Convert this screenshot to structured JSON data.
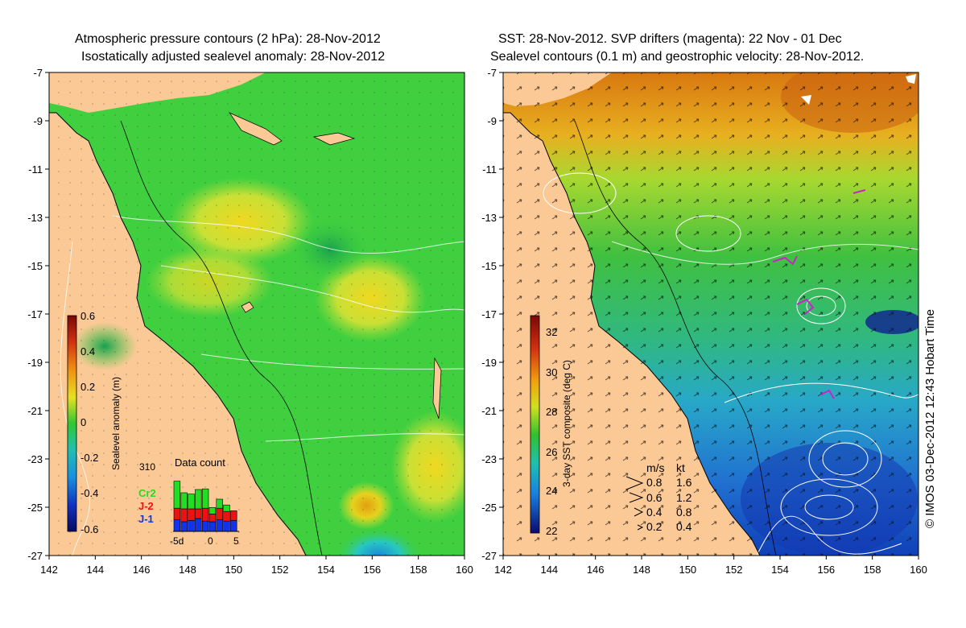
{
  "left": {
    "title1": "Atmospheric pressure contours (2 hPa): 28-Nov-2012",
    "title2": "Isostatically adjusted sealevel anomaly: 28-Nov-2012",
    "colorbar": {
      "label": "Sealevel anomaly (m)",
      "ticks": [
        "0.6",
        "0.4",
        "0.2",
        "0",
        "-0.2",
        "-0.4",
        "-0.6"
      ]
    },
    "data_count": {
      "title": "Data count",
      "max_label": "310",
      "legend": [
        {
          "label": "Cr2",
          "color": "#22dd22"
        },
        {
          "label": "J-2",
          "color": "#ee1111"
        },
        {
          "label": "J-1",
          "color": "#1133ee"
        }
      ],
      "x_ticks": [
        "-5d",
        "0",
        "5"
      ],
      "bars": [
        {
          "j1": 0.18,
          "j2": 0.18,
          "cr2": 0.42
        },
        {
          "j1": 0.15,
          "j2": 0.2,
          "cr2": 0.25
        },
        {
          "j1": 0.17,
          "j2": 0.18,
          "cr2": 0.23
        },
        {
          "j1": 0.2,
          "j2": 0.15,
          "cr2": 0.3
        },
        {
          "j1": 0.16,
          "j2": 0.2,
          "cr2": 0.3
        },
        {
          "j1": 0.15,
          "j2": 0.12,
          "cr2": 0.1
        },
        {
          "j1": 0.18,
          "j2": 0.18,
          "cr2": 0.14
        },
        {
          "j1": 0.16,
          "j2": 0.15,
          "cr2": 0.1
        },
        {
          "j1": 0.17,
          "j2": 0.15,
          "cr2": 0.0
        }
      ]
    }
  },
  "right": {
    "title1": "SST: 28-Nov-2012. SVP drifters (magenta): 22 Nov - 01 Dec",
    "title2": "Sealevel contours (0.1 m) and geostrophic velocity: 28-Nov-2012.",
    "colorbar": {
      "label": "3-day SST composite (deg C)",
      "ticks": [
        "32",
        "30",
        "28",
        "26",
        "24",
        "22"
      ]
    },
    "velocity_legend": {
      "header_ms": "m/s",
      "header_kt": "kt",
      "rows": [
        {
          "ms": "0.8",
          "kt": "1.6"
        },
        {
          "ms": "0.6",
          "kt": "1.2"
        },
        {
          "ms": "0.4",
          "kt": "0.8"
        },
        {
          "ms": "0.2",
          "kt": "0.4"
        }
      ]
    }
  },
  "axes": {
    "lat_ticks": [
      "-7",
      "-9",
      "-11",
      "-13",
      "-15",
      "-17",
      "-19",
      "-21",
      "-23",
      "-25",
      "-27"
    ],
    "lon_ticks": [
      "142",
      "144",
      "146",
      "148",
      "150",
      "152",
      "154",
      "156",
      "158",
      "160"
    ]
  },
  "credit": "© IMOS 03-Dec-2012 12:43 Hobart Time",
  "colors": {
    "land": "#fbc995",
    "ocean_base": "#3fcf3f",
    "sst_warm": "#e08a10",
    "sst_cool": "#2aa8d8",
    "sst_cold": "#1030b0"
  }
}
